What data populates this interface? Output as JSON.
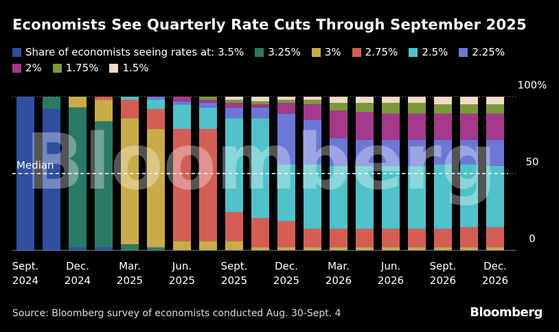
{
  "chart_data": {
    "type": "stacked_bar",
    "title": "Economists See Quarterly Rate Cuts Through September 2025",
    "legend_title": "Share of economists seeing rates at:",
    "categories": [
      "Sept. 2024",
      null,
      "Dec. 2024",
      null,
      "Mar. 2025",
      null,
      "Jun. 2025",
      null,
      "Sept. 2025",
      null,
      "Dec. 2025",
      null,
      "Mar. 2026",
      null,
      "Jun. 2026",
      null,
      "Sept. 2026",
      null,
      "Dec. 2026"
    ],
    "series": [
      {
        "name": "3.5%",
        "color": "#2f4fa0",
        "values": [
          100,
          92,
          2,
          2,
          0,
          0,
          0,
          0,
          0,
          0,
          0,
          0,
          0,
          0,
          0,
          0,
          0,
          0,
          0
        ]
      },
      {
        "name": "3.25%",
        "color": "#2b7a66",
        "values": [
          0,
          8,
          91,
          82,
          4,
          2,
          0,
          0,
          0,
          0,
          0,
          0,
          0,
          0,
          0,
          0,
          0,
          0,
          0
        ]
      },
      {
        "name": "3%",
        "color": "#c9ac4a",
        "values": [
          0,
          0,
          7,
          14,
          82,
          77,
          6,
          6,
          6,
          2,
          2,
          2,
          2,
          2,
          2,
          2,
          2,
          2,
          2
        ]
      },
      {
        "name": "2.75%",
        "color": "#d35e56",
        "values": [
          0,
          0,
          0,
          2,
          12,
          13,
          73,
          73,
          19,
          19,
          17,
          12,
          12,
          12,
          12,
          12,
          12,
          13,
          13
        ]
      },
      {
        "name": "2.5%",
        "color": "#4fc2ca",
        "values": [
          0,
          0,
          0,
          0,
          2,
          6,
          16,
          14,
          61,
          65,
          37,
          42,
          41,
          41,
          41,
          41,
          42,
          41,
          40
        ]
      },
      {
        "name": "2.25%",
        "color": "#6c78d6",
        "values": [
          0,
          0,
          0,
          0,
          0,
          2,
          2,
          3,
          7,
          7,
          33,
          29,
          18,
          17,
          17,
          17,
          16,
          16,
          17
        ]
      },
      {
        "name": "2%",
        "color": "#a5398b",
        "values": [
          0,
          0,
          0,
          0,
          0,
          0,
          3,
          2,
          3,
          2,
          7,
          10,
          18,
          18,
          17,
          17,
          17,
          17,
          17
        ]
      },
      {
        "name": "1.75%",
        "color": "#7a9a38",
        "values": [
          0,
          0,
          0,
          0,
          0,
          0,
          0,
          2,
          2,
          2,
          2,
          3,
          5,
          6,
          7,
          7,
          6,
          6,
          6
        ]
      },
      {
        "name": "1.5%",
        "color": "#f1dac8",
        "values": [
          0,
          0,
          0,
          0,
          0,
          0,
          0,
          0,
          2,
          3,
          2,
          2,
          4,
          4,
          4,
          4,
          5,
          5,
          5
        ]
      }
    ],
    "ylim": [
      0,
      100
    ],
    "yticks": [
      0,
      50,
      {
        "value": 100,
        "label": "100%"
      }
    ],
    "median": {
      "value": 50,
      "label": "Median"
    },
    "watermark": "Bloomberg",
    "source": "Source: Bloomberg survey of economists conducted Aug. 30-Sept. 4",
    "logo": "Bloomberg"
  }
}
